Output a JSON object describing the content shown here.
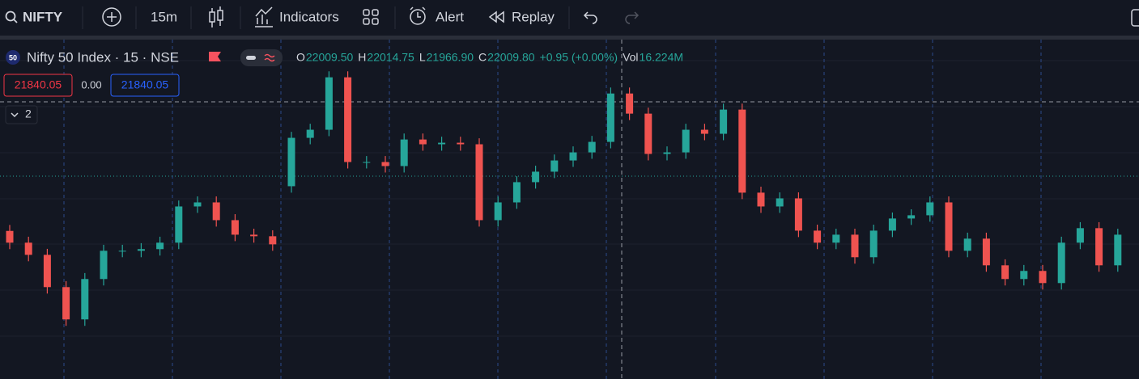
{
  "toolbar": {
    "symbol": "NIFTY",
    "interval": "15m",
    "indicators": "Indicators",
    "alert": "Alert",
    "replay": "Replay"
  },
  "legend": {
    "badge": "50",
    "title": "Nifty 50 Index · 15 · NSE",
    "open_label": "O",
    "open": "22009.50",
    "high_label": "H",
    "high": "22014.75",
    "low_label": "L",
    "low": "21966.90",
    "close_label": "C",
    "close": "22009.80",
    "change": "+0.95 (+0.00%)",
    "volume_label": "Vol",
    "volume": "16.224M"
  },
  "trade": {
    "sell": "21840.05",
    "spread": "0.00",
    "buy": "21840.05"
  },
  "indicator_count": "2",
  "chart_data": {
    "type": "candlestick",
    "up_color": "#26a69a",
    "down_color": "#ef5350",
    "ylim": [
      21709,
      22078
    ],
    "open": [
      21870.0,
      21857.2,
      21844.0,
      21808.9,
      21773.8,
      21817.7,
      21848.4,
      21848.4,
      21850.2,
      21857.2,
      21896.6,
      21901.0,
      21881.7,
      21865.9,
      21864.2,
      21918.6,
      21971.2,
      21980.0,
      22037.0,
      21944.9,
      21944.9,
      21940.5,
      21969.4,
      21964.2,
      21965.9,
      21964.2,
      21881.7,
      21901.0,
      21923.0,
      21934.4,
      21946.6,
      21955.4,
      21966.8,
      22019.4,
      21997.5,
      21953.7,
      21955.4,
      21980.0,
      21975.6,
      22001.9,
      21911.6,
      21896.6,
      21905.4,
      21870.3,
      21857.2,
      21865.9,
      21841.4,
      21870.3,
      21883.5,
      21887.0,
      21901.0,
      21848.4,
      21861.6,
      21832.6,
      21817.7,
      21826.5,
      21813.3,
      21857.2,
      21873.0,
      21832.6
    ],
    "high": [
      21876.5,
      21863.7,
      21850.5,
      21815.4,
      21824.2,
      21854.9,
      21854.9,
      21856.7,
      21863.7,
      21903.1,
      21907.5,
      21907.5,
      21888.2,
      21872.4,
      21870.7,
      21977.7,
      21986.5,
      22043.5,
      22043.5,
      21951.4,
      21951.4,
      21975.9,
      21975.9,
      21972.4,
      21972.4,
      21970.7,
      21907.5,
      21929.5,
      21940.9,
      21953.1,
      21961.9,
      21973.3,
      22025.9,
      22025.9,
      22004.0,
      21961.9,
      21986.5,
      21986.5,
      22008.4,
      22008.4,
      21918.1,
      21911.9,
      21911.9,
      21876.8,
      21872.4,
      21872.4,
      21876.8,
      21890.0,
      21893.5,
      21907.5,
      21907.5,
      21868.1,
      21868.1,
      21839.1,
      21833.0,
      21833.0,
      21863.7,
      21879.5,
      21879.5,
      21872.4
    ],
    "low": [
      21850.2,
      21837.0,
      21801.9,
      21766.8,
      21766.8,
      21810.7,
      21841.4,
      21841.4,
      21843.2,
      21850.2,
      21889.6,
      21874.7,
      21858.9,
      21857.2,
      21848.4,
      21911.6,
      21964.2,
      21973.0,
      21937.9,
      21937.9,
      21933.5,
      21933.5,
      21957.2,
      21957.2,
      21957.2,
      21874.7,
      21874.7,
      21894.0,
      21916.0,
      21927.4,
      21939.6,
      21948.4,
      21959.8,
      21990.5,
      21946.7,
      21946.7,
      21948.4,
      21968.6,
      21968.6,
      21904.6,
      21889.6,
      21889.6,
      21863.3,
      21850.2,
      21850.2,
      21834.4,
      21834.4,
      21863.3,
      21876.5,
      21880.0,
      21841.4,
      21841.4,
      21825.6,
      21810.7,
      21810.7,
      21806.3,
      21806.3,
      21850.2,
      21825.6,
      21825.6
    ],
    "close": [
      21857.2,
      21844.0,
      21808.9,
      21773.8,
      21817.7,
      21848.4,
      21848.4,
      21850.2,
      21857.2,
      21896.6,
      21901.0,
      21881.7,
      21865.9,
      21864.2,
      21855.4,
      21971.2,
      21980.0,
      22037.0,
      21944.9,
      21944.9,
      21940.5,
      21969.4,
      21964.2,
      21965.9,
      21964.2,
      21881.7,
      21901.0,
      21923.0,
      21934.4,
      21946.6,
      21955.4,
      21966.8,
      22019.4,
      21997.5,
      21953.7,
      21955.4,
      21980.0,
      21975.6,
      22001.9,
      21911.6,
      21896.6,
      21905.4,
      21870.3,
      21857.2,
      21865.9,
      21841.4,
      21870.3,
      21883.5,
      21887.0,
      21901.0,
      21848.4,
      21861.6,
      21832.6,
      21817.7,
      21826.5,
      21813.3,
      21857.2,
      21873.0,
      21832.6,
      21865.9
    ]
  }
}
